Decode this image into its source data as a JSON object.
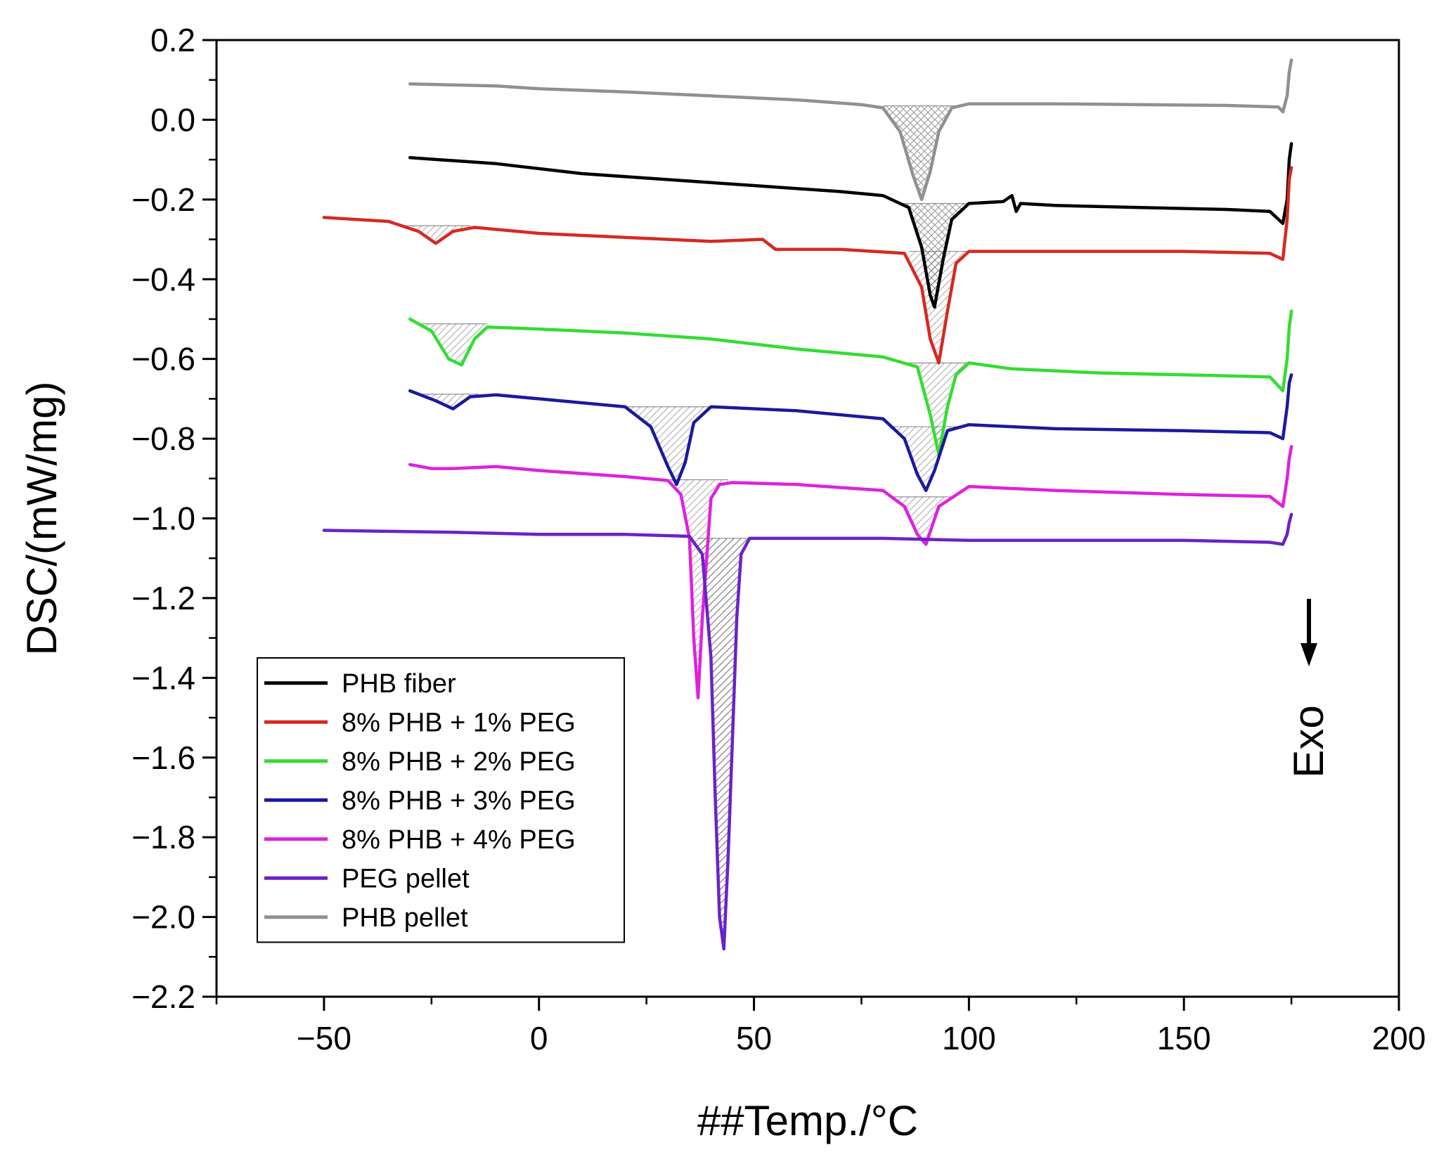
{
  "chart_data": {
    "type": "line",
    "xlabel": "##Temp./°C",
    "ylabel": "DSC/(mW/mg)",
    "xlim": [
      -75,
      200
    ],
    "ylim": [
      -2.2,
      0.2
    ],
    "x_ticks": [
      -50,
      0,
      50,
      100,
      150,
      200
    ],
    "x_tick_labels": [
      "−50",
      "0",
      "50",
      "100",
      "150",
      "200"
    ],
    "y_ticks": [
      0.2,
      0.0,
      -0.2,
      -0.4,
      -0.6,
      -0.8,
      -1.0,
      -1.2,
      -1.4,
      -1.6,
      -1.8,
      -2.0,
      -2.2
    ],
    "y_tick_labels": [
      "0.2",
      "0.0",
      "−0.2",
      "−0.4",
      "−0.6",
      "−0.8",
      "−1.0",
      "−1.2",
      "−1.4",
      "−1.6",
      "−1.8",
      "−2.0",
      "−2.2"
    ],
    "grid": false,
    "legend_position": "bottom-left",
    "annotation": {
      "text": "Exo",
      "arrow": "down"
    },
    "series": [
      {
        "name": "PHB fiber",
        "color": "#000000",
        "x": [
          -30,
          -10,
          10,
          30,
          50,
          70,
          80,
          86,
          89,
          91,
          92,
          94,
          96,
          100,
          108,
          110,
          111,
          112,
          120,
          140,
          160,
          170,
          173,
          174,
          174.5,
          175
        ],
        "y": [
          -0.095,
          -0.11,
          -0.135,
          -0.15,
          -0.165,
          -0.18,
          -0.19,
          -0.22,
          -0.32,
          -0.44,
          -0.47,
          -0.35,
          -0.25,
          -0.21,
          -0.205,
          -0.19,
          -0.23,
          -0.21,
          -0.215,
          -0.22,
          -0.225,
          -0.23,
          -0.26,
          -0.2,
          -0.1,
          -0.06
        ]
      },
      {
        "name": "8% PHB + 1% PEG",
        "color": "#d42a23",
        "x": [
          -50,
          -35,
          -28,
          -24,
          -20,
          -15,
          0,
          20,
          40,
          52,
          55,
          58,
          70,
          85,
          89,
          91,
          93,
          95,
          97,
          100,
          110,
          130,
          150,
          170,
          173,
          174,
          174.5,
          175
        ],
        "y": [
          -0.245,
          -0.255,
          -0.28,
          -0.31,
          -0.28,
          -0.27,
          -0.285,
          -0.295,
          -0.305,
          -0.3,
          -0.325,
          -0.325,
          -0.325,
          -0.335,
          -0.42,
          -0.55,
          -0.61,
          -0.48,
          -0.36,
          -0.33,
          -0.33,
          -0.33,
          -0.33,
          -0.335,
          -0.35,
          -0.25,
          -0.15,
          -0.12
        ]
      },
      {
        "name": "8% PHB + 2% PEG",
        "color": "#33dd33",
        "x": [
          -30,
          -25,
          -21,
          -18,
          -15,
          -12,
          0,
          20,
          40,
          60,
          80,
          88,
          91,
          93,
          95,
          97,
          100,
          110,
          130,
          150,
          170,
          173,
          174,
          174.5,
          175
        ],
        "y": [
          -0.5,
          -0.53,
          -0.6,
          -0.615,
          -0.55,
          -0.52,
          -0.525,
          -0.535,
          -0.55,
          -0.575,
          -0.595,
          -0.62,
          -0.74,
          -0.84,
          -0.72,
          -0.64,
          -0.61,
          -0.625,
          -0.635,
          -0.64,
          -0.645,
          -0.68,
          -0.6,
          -0.52,
          -0.48
        ]
      },
      {
        "name": "8% PHB + 3% PEG",
        "color": "#1a1a9c",
        "x": [
          -30,
          -24,
          -20,
          -16,
          -10,
          0,
          20,
          26,
          30,
          32,
          34,
          36,
          40,
          60,
          80,
          85,
          88,
          90,
          92,
          95,
          100,
          120,
          150,
          170,
          173,
          174,
          174.5,
          175
        ],
        "y": [
          -0.68,
          -0.705,
          -0.725,
          -0.695,
          -0.69,
          -0.7,
          -0.72,
          -0.77,
          -0.87,
          -0.915,
          -0.86,
          -0.76,
          -0.72,
          -0.73,
          -0.75,
          -0.8,
          -0.89,
          -0.93,
          -0.88,
          -0.78,
          -0.765,
          -0.775,
          -0.78,
          -0.785,
          -0.8,
          -0.72,
          -0.66,
          -0.64
        ]
      },
      {
        "name": "8% PHB + 4% PEG",
        "color": "#dd22dd",
        "x": [
          -30,
          -25,
          -20,
          -10,
          0,
          20,
          30,
          33,
          35,
          36,
          37,
          38,
          40,
          42,
          45,
          60,
          80,
          85,
          88,
          90,
          93,
          100,
          120,
          150,
          170,
          173,
          174,
          174.5,
          175
        ],
        "y": [
          -0.865,
          -0.875,
          -0.875,
          -0.87,
          -0.88,
          -0.895,
          -0.905,
          -0.94,
          -1.05,
          -1.3,
          -1.45,
          -1.25,
          -0.95,
          -0.915,
          -0.91,
          -0.915,
          -0.93,
          -0.97,
          -1.04,
          -1.065,
          -0.97,
          -0.92,
          -0.93,
          -0.94,
          -0.945,
          -0.97,
          -0.9,
          -0.85,
          -0.82
        ]
      },
      {
        "name": "PEG pellet",
        "color": "#6a22c8",
        "x": [
          -50,
          -20,
          0,
          20,
          35,
          38,
          40,
          41,
          42,
          43,
          44,
          45,
          46,
          47,
          49,
          60,
          80,
          100,
          120,
          150,
          170,
          173,
          174,
          174.5,
          175
        ],
        "y": [
          -1.03,
          -1.035,
          -1.04,
          -1.04,
          -1.045,
          -1.09,
          -1.35,
          -1.7,
          -2.0,
          -2.08,
          -1.85,
          -1.55,
          -1.25,
          -1.09,
          -1.05,
          -1.05,
          -1.05,
          -1.055,
          -1.055,
          -1.055,
          -1.06,
          -1.065,
          -1.04,
          -1.01,
          -0.99
        ]
      },
      {
        "name": "PHB pellet",
        "color": "#909090",
        "x": [
          -30,
          -10,
          0,
          20,
          40,
          60,
          75,
          80,
          84,
          87,
          89,
          91,
          93,
          96,
          100,
          120,
          140,
          160,
          172,
          173,
          174,
          174.5,
          175
        ],
        "y": [
          0.09,
          0.085,
          0.078,
          0.07,
          0.06,
          0.05,
          0.038,
          0.03,
          -0.03,
          -0.14,
          -0.2,
          -0.13,
          -0.03,
          0.03,
          0.04,
          0.04,
          0.038,
          0.036,
          0.032,
          0.02,
          0.06,
          0.12,
          0.15
        ]
      }
    ]
  }
}
